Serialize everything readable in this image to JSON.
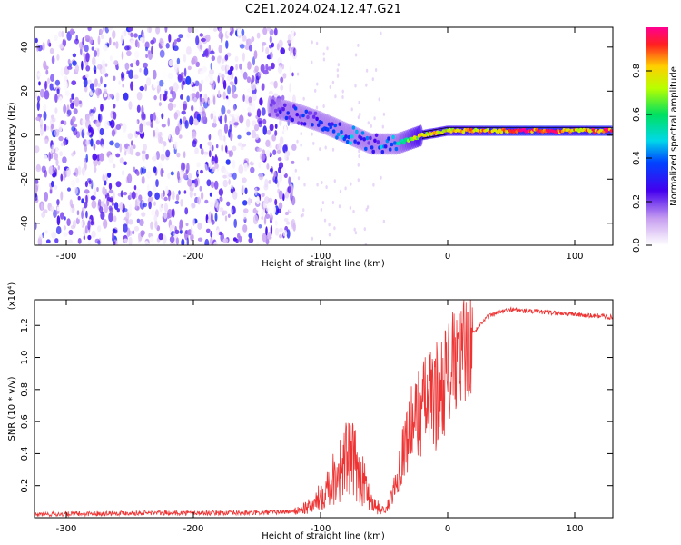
{
  "title": "C2E1.2024.024.12.47.G21",
  "chart_data": [
    {
      "type": "heatmap",
      "xlabel": "Height of straight line (km)",
      "ylabel": "Frequency (Hz)",
      "xlim": [
        -325,
        130
      ],
      "ylim": [
        -50,
        49
      ],
      "xticks": [
        -300,
        -200,
        -100,
        0,
        100
      ],
      "yticks": [
        -40,
        -20,
        0,
        20,
        40
      ],
      "colorbar": {
        "label": "Normalized spectral amplitude",
        "ticks": [
          0.0,
          0.2,
          0.4,
          0.6,
          0.8
        ],
        "range": [
          0,
          1
        ],
        "colormap": "white-violet-blue-cyan-green-yellow-red-magenta"
      },
      "ridge": {
        "x": [
          -140,
          -120,
          -100,
          -80,
          -60,
          -40,
          -20,
          0,
          20,
          40,
          60,
          80,
          100,
          120,
          130
        ],
        "frequency": [
          13,
          10,
          6,
          1,
          -4,
          -4,
          0,
          2,
          2,
          2,
          2,
          2,
          2,
          2,
          2
        ],
        "amplitude": [
          0.15,
          0.25,
          0.3,
          0.4,
          0.3,
          0.45,
          0.75,
          0.75,
          0.8,
          0.85,
          0.9,
          0.9,
          0.8,
          0.88,
          0.9
        ]
      },
      "noise_region_x": [
        -325,
        -120
      ]
    },
    {
      "type": "line",
      "xlabel": "Height of straight line (km)",
      "ylabel": "SNR (10 * v/v)",
      "y_scale_label": "(x10⁴)",
      "xlim": [
        -325,
        130
      ],
      "ylim": [
        0,
        1.36
      ],
      "xticks": [
        -300,
        -200,
        -100,
        0,
        100
      ],
      "yticks": [
        0.2,
        0.4,
        0.6,
        0.8,
        1.0,
        1.2
      ],
      "line_color": "#ee3333",
      "series": [
        {
          "x": [
            -325,
            -250,
            -200,
            -150,
            -120,
            -105,
            -95,
            -85,
            -78,
            -72,
            -65,
            -58,
            -50,
            -45,
            -40,
            -35,
            -30,
            -25,
            -20,
            -15,
            -10,
            -5,
            0,
            5,
            10,
            15,
            20,
            30,
            40,
            50,
            60,
            80,
            100,
            110,
            120,
            130
          ],
          "values": [
            0.02,
            0.03,
            0.03,
            0.03,
            0.04,
            0.08,
            0.2,
            0.3,
            0.38,
            0.32,
            0.2,
            0.08,
            0.04,
            0.1,
            0.25,
            0.42,
            0.55,
            0.62,
            0.7,
            0.72,
            0.75,
            0.82,
            0.9,
            0.95,
            1.0,
            1.05,
            1.15,
            1.25,
            1.28,
            1.3,
            1.29,
            1.28,
            1.27,
            1.26,
            1.26,
            1.25
          ]
        }
      ]
    }
  ]
}
